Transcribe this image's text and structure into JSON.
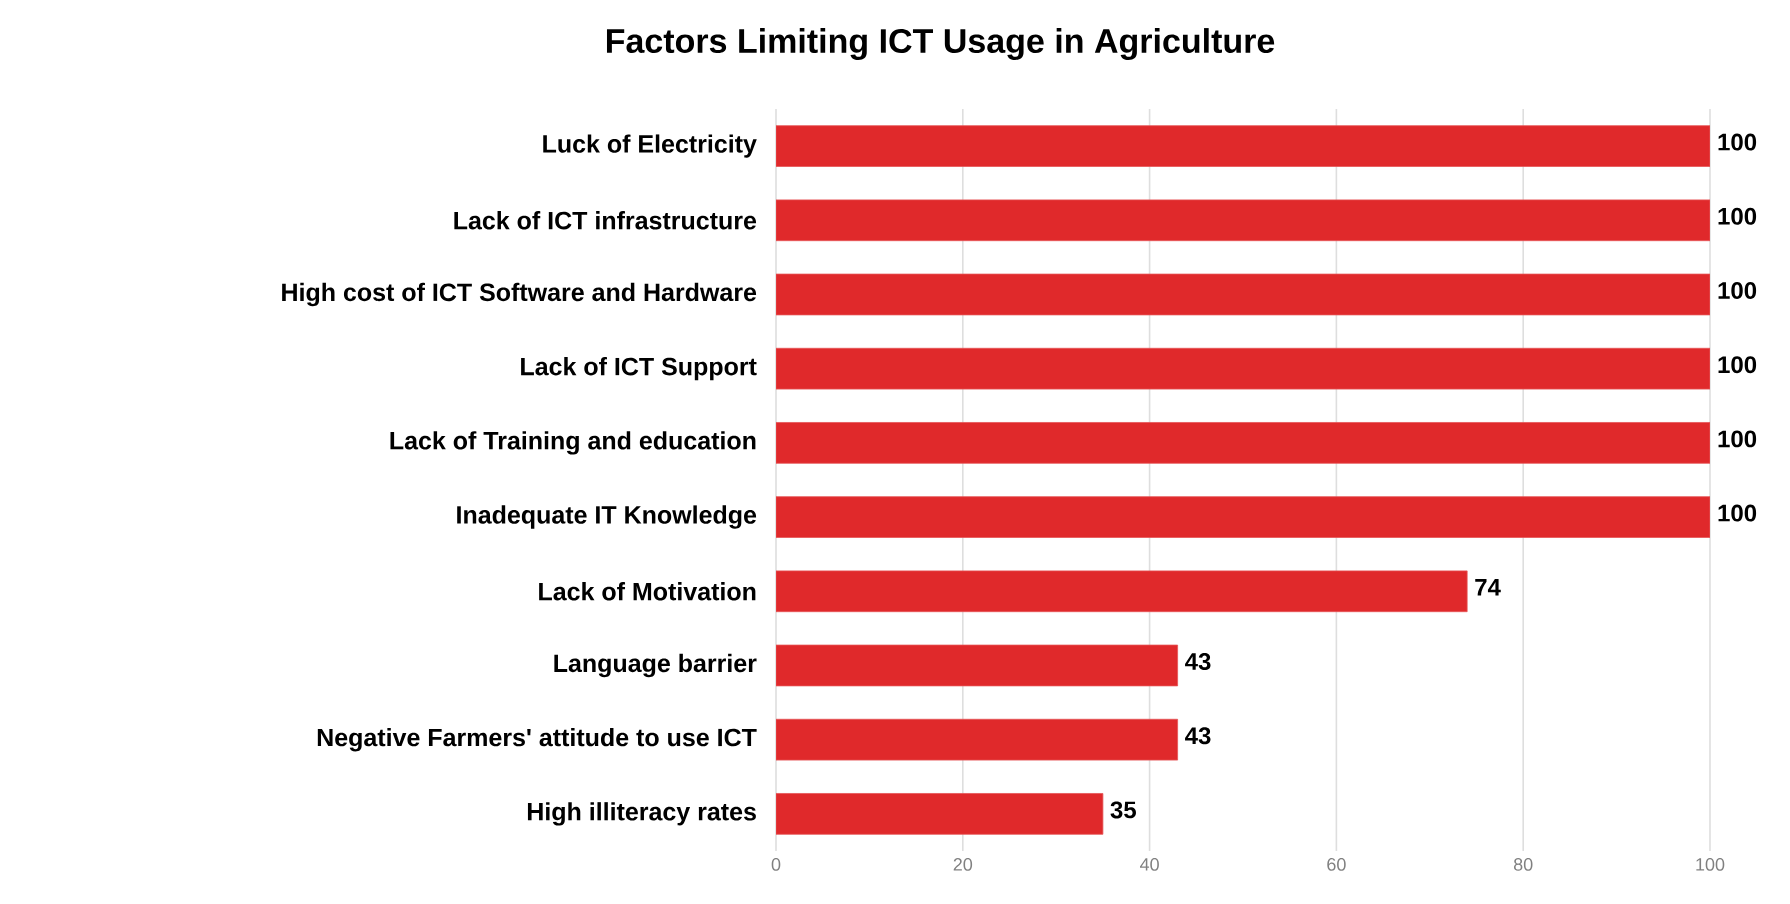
{
  "chart_data": {
    "type": "bar",
    "orientation": "horizontal",
    "title": "Factors Limiting ICT Usage in Agriculture",
    "categories": [
      "Luck of Electricity",
      "Lack of ICT infrastructure",
      "High cost of ICT Software and Hardware",
      "Lack of ICT Support",
      "Lack of Training and education",
      "Inadequate IT Knowledge",
      "Lack of Motivation",
      "Language barrier",
      "Negative Farmers' attitude to use ICT",
      "High illiteracy rates"
    ],
    "values": [
      100,
      100,
      100,
      100,
      100,
      100,
      74,
      43,
      43,
      35
    ],
    "color": "#e0292b",
    "data_labels": true,
    "xlim": [
      0,
      100
    ],
    "xticks": [
      0,
      20,
      40,
      60,
      80,
      100
    ],
    "grid": "x"
  }
}
